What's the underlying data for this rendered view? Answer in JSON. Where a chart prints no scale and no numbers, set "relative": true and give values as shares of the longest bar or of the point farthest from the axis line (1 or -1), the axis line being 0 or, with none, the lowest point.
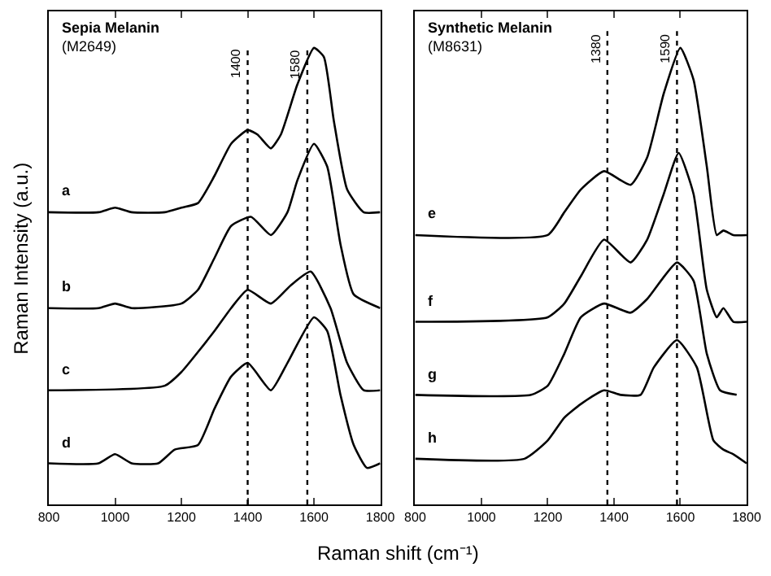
{
  "chart_data": [
    {
      "type": "line",
      "title": "Sepia Melanin",
      "subtitle": "(M2649)",
      "xlabel": "Raman shift (cm⁻¹)",
      "ylabel": "Raman Intensity (a.u.)",
      "relative": true,
      "tick_labels": "x",
      "marker": "none",
      "line_style": "solid",
      "xlim": [
        800,
        1800
      ],
      "xticks": [
        800,
        1000,
        1200,
        1400,
        1600,
        1800
      ],
      "series": [
        {
          "color": "#000000",
          "x": [
            800,
            950,
            1000,
            1050,
            1150,
            1200,
            1250,
            1300,
            1350,
            1400,
            1430,
            1470,
            1500,
            1550,
            1600,
            1630,
            1660,
            1700,
            1750,
            1800
          ],
          "values": [
            0.64,
            0.64,
            0.65,
            0.64,
            0.64,
            0.65,
            0.66,
            0.72,
            0.79,
            0.82,
            0.81,
            0.78,
            0.81,
            0.92,
            1.0,
            0.98,
            0.84,
            0.69,
            0.64,
            0.64
          ]
        },
        {
          "color": "#000000",
          "x": [
            800,
            950,
            1000,
            1050,
            1200,
            1250,
            1300,
            1350,
            1410,
            1470,
            1520,
            1550,
            1600,
            1640,
            1680,
            1720,
            1800
          ],
          "values": [
            0.43,
            0.43,
            0.44,
            0.43,
            0.44,
            0.47,
            0.54,
            0.61,
            0.63,
            0.59,
            0.64,
            0.71,
            0.79,
            0.74,
            0.57,
            0.46,
            0.43
          ]
        },
        {
          "color": "#000000",
          "x": [
            800,
            1150,
            1200,
            1300,
            1350,
            1400,
            1470,
            1530,
            1590,
            1650,
            1700,
            1750,
            1800
          ],
          "values": [
            0.25,
            0.26,
            0.29,
            0.38,
            0.43,
            0.47,
            0.44,
            0.48,
            0.51,
            0.43,
            0.31,
            0.25,
            0.25
          ]
        },
        {
          "color": "#000000",
          "x": [
            800,
            950,
            1000,
            1050,
            1130,
            1180,
            1250,
            1300,
            1350,
            1400,
            1470,
            1520,
            1600,
            1640,
            1680,
            1720,
            1760,
            1800
          ],
          "values": [
            0.09,
            0.09,
            0.11,
            0.09,
            0.09,
            0.12,
            0.13,
            0.21,
            0.28,
            0.31,
            0.25,
            0.31,
            0.41,
            0.38,
            0.24,
            0.13,
            0.08,
            0.09
          ]
        }
      ],
      "ref_lines": [
        {
          "axis": "x",
          "value": 1400,
          "label": "1400",
          "color": "#000000",
          "line_style": "dotted"
        },
        {
          "axis": "x",
          "value": 1580,
          "label": "1580",
          "color": "#000000",
          "line_style": "dotted"
        }
      ],
      "annotations": [
        "a",
        "b",
        "c",
        "d"
      ]
    },
    {
      "type": "line",
      "title": "Synthetic Melanin",
      "subtitle": "(M8631)",
      "relative": true,
      "tick_labels": "x",
      "marker": "none",
      "line_style": "solid",
      "xlim": [
        800,
        1800
      ],
      "xticks": [
        800,
        1000,
        1200,
        1400,
        1600,
        1800
      ],
      "series": [
        {
          "color": "#000000",
          "x": [
            800,
            1200,
            1250,
            1300,
            1370,
            1450,
            1500,
            1550,
            1600,
            1640,
            1680,
            1710,
            1730,
            1760,
            1800
          ],
          "values": [
            0.59,
            0.59,
            0.64,
            0.69,
            0.73,
            0.7,
            0.76,
            0.9,
            1.0,
            0.93,
            0.74,
            0.59,
            0.6,
            0.59,
            0.59
          ]
        },
        {
          "color": "#000000",
          "x": [
            800,
            1200,
            1250,
            1300,
            1370,
            1450,
            1500,
            1550,
            1595,
            1640,
            1680,
            1710,
            1730,
            1760,
            1800
          ],
          "values": [
            0.4,
            0.41,
            0.44,
            0.5,
            0.58,
            0.53,
            0.58,
            0.68,
            0.77,
            0.68,
            0.47,
            0.41,
            0.43,
            0.4,
            0.4
          ]
        },
        {
          "color": "#000000",
          "x": [
            800,
            1150,
            1200,
            1250,
            1300,
            1370,
            1450,
            1500,
            1590,
            1640,
            1680,
            1720,
            1770
          ],
          "values": [
            0.24,
            0.24,
            0.26,
            0.33,
            0.41,
            0.44,
            0.42,
            0.45,
            0.53,
            0.49,
            0.33,
            0.25,
            0.24
          ]
        },
        {
          "color": "#000000",
          "x": [
            800,
            1130,
            1200,
            1250,
            1300,
            1370,
            1420,
            1480,
            1520,
            1590,
            1650,
            1700,
            1730,
            1760,
            1800
          ],
          "values": [
            0.1,
            0.1,
            0.14,
            0.19,
            0.22,
            0.25,
            0.24,
            0.24,
            0.3,
            0.36,
            0.3,
            0.14,
            0.12,
            0.11,
            0.09
          ]
        }
      ],
      "ref_lines": [
        {
          "axis": "x",
          "value": 1380,
          "label": "1380",
          "color": "#000000",
          "line_style": "dotted"
        },
        {
          "axis": "x",
          "value": 1590,
          "label": "1590",
          "color": "#000000",
          "line_style": "dotted"
        }
      ],
      "annotations": [
        "e",
        "f",
        "g",
        "h"
      ]
    }
  ]
}
